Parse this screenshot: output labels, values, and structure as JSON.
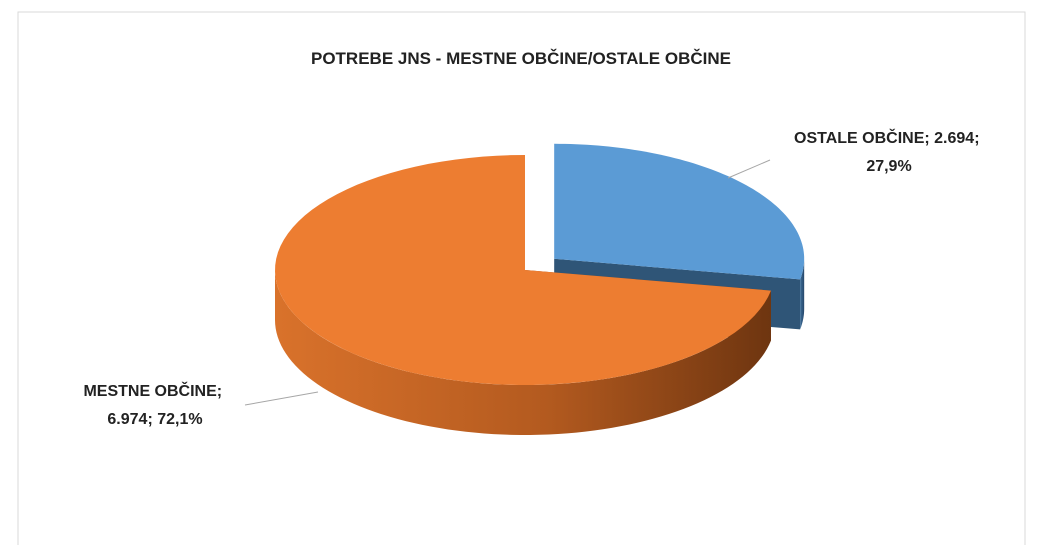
{
  "chart_data": {
    "type": "pie3d",
    "title": "POTREBE JNS - MESTNE OBČINE/OSTALE OBČINE",
    "categories": [
      "OSTALE OBČINE",
      "MESTNE OBČINE"
    ],
    "values": [
      2694,
      6974
    ],
    "value_labels": [
      "2.694",
      "6.974"
    ],
    "percents": [
      27.9,
      72.1
    ],
    "percent_labels": [
      "27,9%",
      "72,1%"
    ],
    "label_separator": "; ",
    "colors": [
      "#5b9bd5",
      "#ed7d31"
    ],
    "exploded": [
      true,
      false
    ]
  }
}
